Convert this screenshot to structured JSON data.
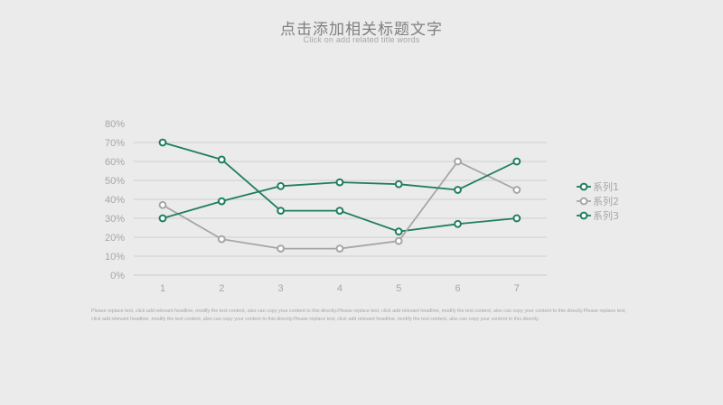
{
  "title": "点击添加相关标题文字",
  "subtitle": "Click on add related title words",
  "note": "Please replace text, click add relevant headline, modify the text content, also can copy your content to this directly.Please replace text, click add relevant headline, modify the text content, also can copy your content to this directly.Please replace text, click add relevant headline, modify the text content, also can copy your content to this directly.Please replace text, click add relevant headline, modify the text content, also can copy your content to this directly.",
  "chart_data": {
    "type": "line",
    "categories": [
      "1",
      "2",
      "3",
      "4",
      "5",
      "6",
      "7"
    ],
    "ylim": [
      0,
      80
    ],
    "yticks": [
      "0%",
      "10%",
      "20%",
      "30%",
      "40%",
      "50%",
      "60%",
      "70%",
      "80%"
    ],
    "grid": true,
    "legend_position": "right",
    "series": [
      {
        "name": "系列1",
        "color": "#1e7f5c",
        "values": [
          70,
          61,
          34,
          34,
          23,
          27,
          30
        ]
      },
      {
        "name": "系列2",
        "color": "#a6a6a6",
        "values": [
          37,
          19,
          14,
          14,
          18,
          60,
          45
        ]
      },
      {
        "name": "系列3",
        "color": "#1e7f5c",
        "values": [
          30,
          39,
          47,
          49,
          48,
          45,
          60
        ]
      }
    ]
  }
}
